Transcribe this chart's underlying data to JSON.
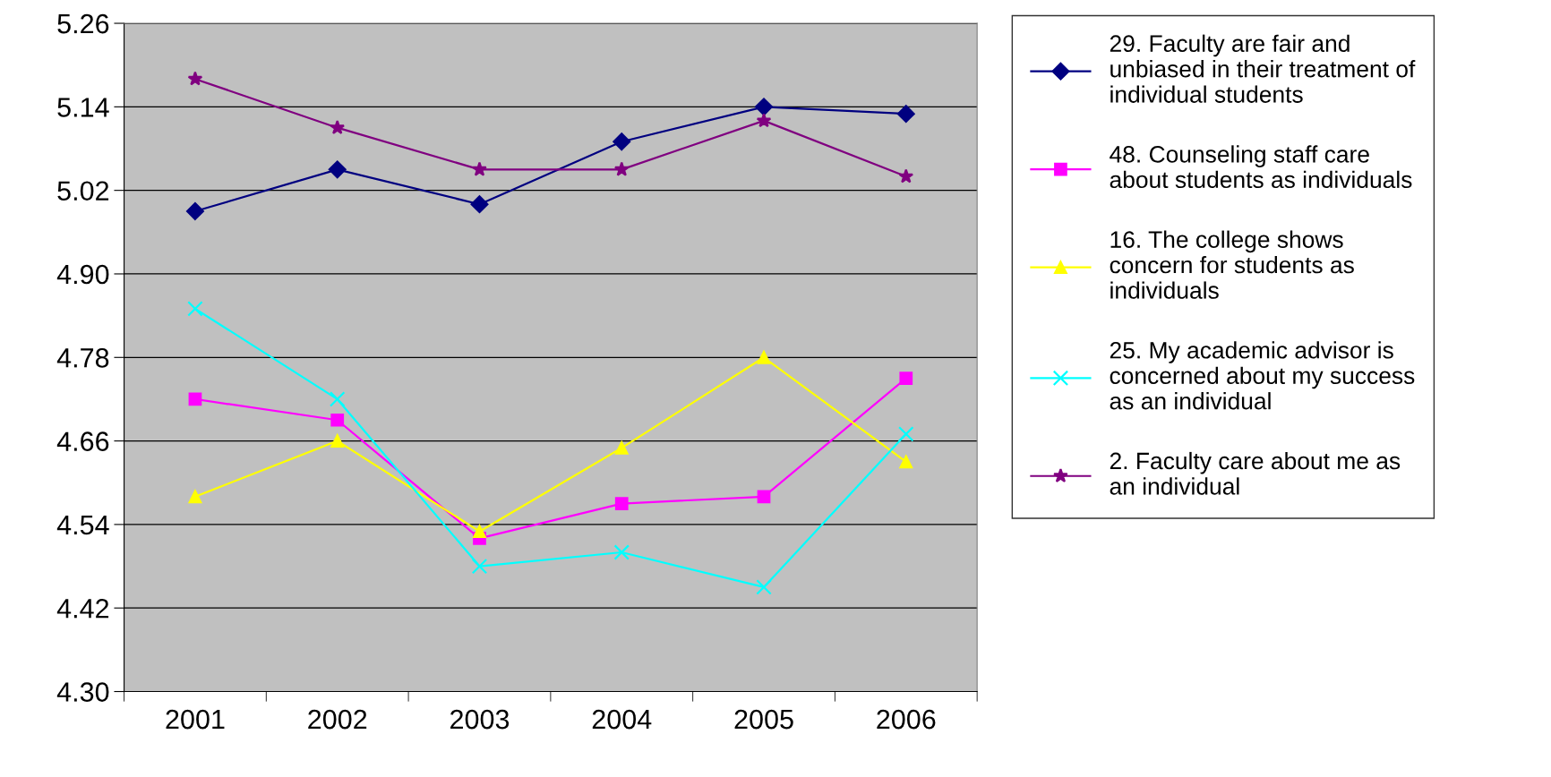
{
  "chart_data": {
    "type": "line",
    "categories": [
      "2001",
      "2002",
      "2003",
      "2004",
      "2005",
      "2006"
    ],
    "series": [
      {
        "name": "29. Faculty are fair and\nunbiased in their treatment of\nindividual students",
        "color": "#000080",
        "marker": "diamond",
        "values": [
          4.99,
          5.05,
          5.0,
          5.09,
          5.14,
          5.13
        ]
      },
      {
        "name": "48. Counseling staff care\nabout students as individuals",
        "color": "#ff00ff",
        "marker": "square",
        "values": [
          4.72,
          4.69,
          4.52,
          4.57,
          4.58,
          4.75
        ]
      },
      {
        "name": "16. The college shows\nconcern for students as\nindividuals",
        "color": "#ffff00",
        "marker": "triangle",
        "values": [
          4.58,
          4.66,
          4.53,
          4.65,
          4.78,
          4.63
        ]
      },
      {
        "name": "25. My academic advisor is\nconcerned about my success\nas an individual",
        "color": "#00ffff",
        "marker": "cross",
        "values": [
          4.85,
          4.72,
          4.48,
          4.5,
          4.45,
          4.67
        ]
      },
      {
        "name": "2. Faculty care about me as\nan individual",
        "color": "#800080",
        "marker": "star",
        "values": [
          5.18,
          5.11,
          5.05,
          5.05,
          5.12,
          5.04
        ]
      }
    ],
    "ylim": [
      4.3,
      5.26
    ],
    "yticks": [
      {
        "value": 4.3,
        "label": "4.30"
      },
      {
        "value": 4.42,
        "label": "4.42"
      },
      {
        "value": 4.54,
        "label": "4.54"
      },
      {
        "value": 4.66,
        "label": "4.66"
      },
      {
        "value": 4.78,
        "label": "4.78"
      },
      {
        "value": 4.9,
        "label": "4.90"
      },
      {
        "value": 5.02,
        "label": "5.02"
      },
      {
        "value": 5.14,
        "label": "5.14"
      },
      {
        "value": 5.26,
        "label": "5.26"
      }
    ],
    "grid": "y",
    "legend": "right",
    "line_style": "solid"
  }
}
